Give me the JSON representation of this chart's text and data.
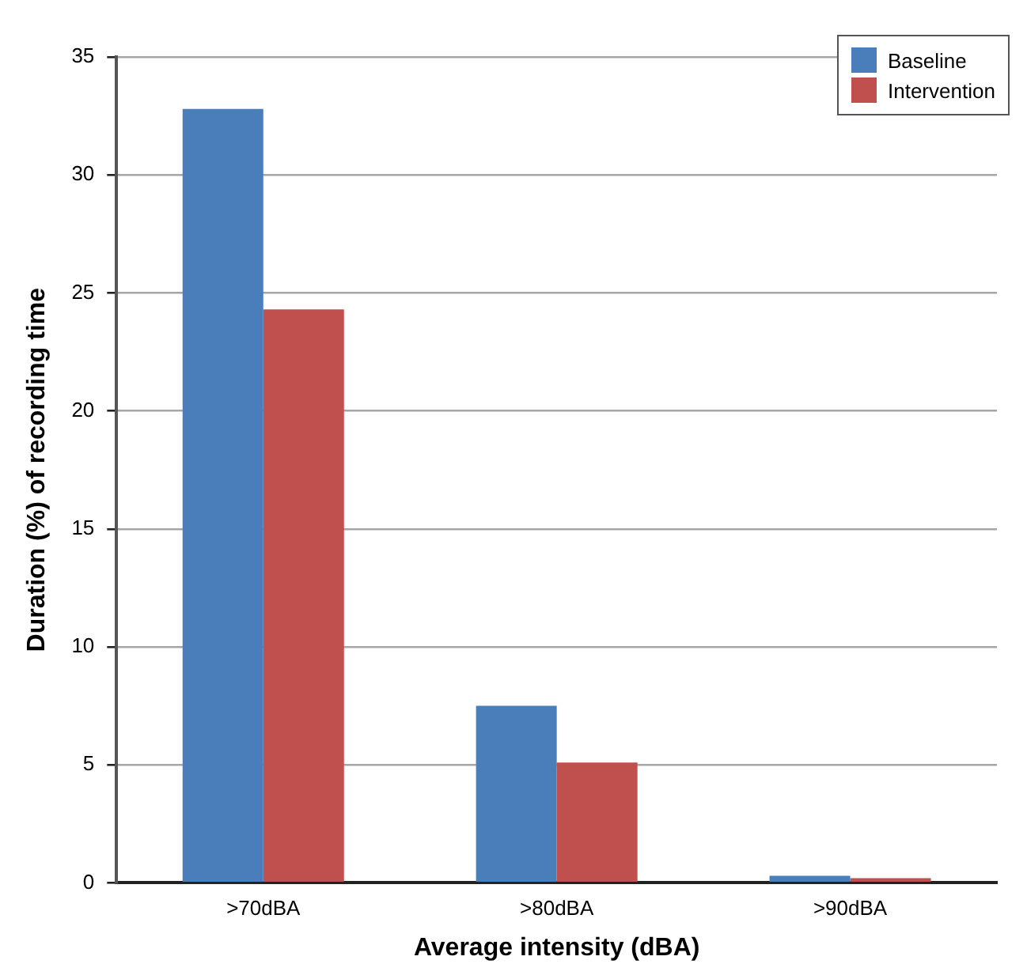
{
  "chart_data": {
    "type": "bar",
    "xlabel": "Average intensity (dBA)",
    "ylabel": "Duration (%) of recording time",
    "categories": [
      ">70dBA",
      ">80dBA",
      ">90dBA"
    ],
    "series": [
      {
        "name": "Baseline",
        "color": "#4a7ebb",
        "values": [
          32.8,
          7.5,
          0.3
        ]
      },
      {
        "name": "Intervention",
        "color": "#c0504d",
        "values": [
          24.3,
          5.1,
          0.2
        ]
      }
    ],
    "ylim": [
      0,
      35
    ],
    "yticks": [
      0,
      5,
      10,
      15,
      20,
      25,
      30,
      35
    ],
    "grid": "y",
    "legend": "top right"
  }
}
